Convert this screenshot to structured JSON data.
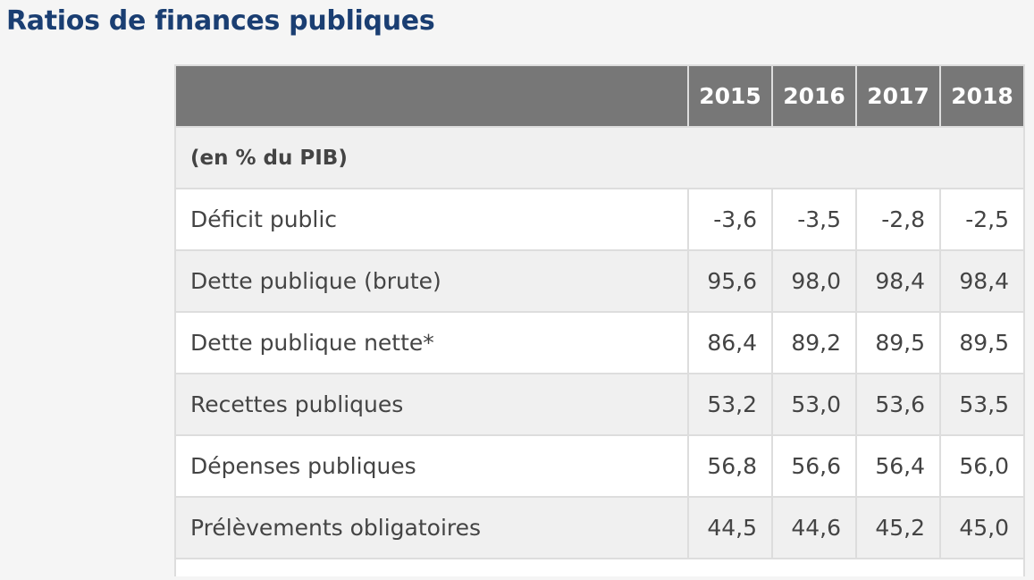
{
  "title": "Ratios de finances publiques",
  "table": {
    "header_label": "",
    "years": [
      "2015",
      "2016",
      "2017",
      "2018"
    ],
    "section_label": "(en % du PIB)",
    "rows": [
      {
        "label": "Déficit public",
        "values": [
          "-3,6",
          "-3,5",
          "-2,8",
          "-2,5"
        ]
      },
      {
        "label": "Dette publique (brute)",
        "values": [
          "95,6",
          "98,0",
          "98,4",
          "98,4"
        ]
      },
      {
        "label": "Dette publique nette*",
        "values": [
          "86,4",
          "89,2",
          "89,5",
          "89,5"
        ]
      },
      {
        "label": "Recettes publiques",
        "values": [
          "53,2",
          "53,0",
          "53,6",
          "53,5"
        ]
      },
      {
        "label": "Dépenses publiques",
        "values": [
          "56,8",
          "56,6",
          "56,4",
          "56,0"
        ]
      },
      {
        "label": "Prélèvements obligatoires",
        "values": [
          "44,5",
          "44,6",
          "45,2",
          "45,0"
        ]
      }
    ]
  },
  "colors": {
    "title": "#1a3e72",
    "header_bg": "#777777",
    "alt_row_bg": "#f0f0f0",
    "text": "#444444"
  }
}
